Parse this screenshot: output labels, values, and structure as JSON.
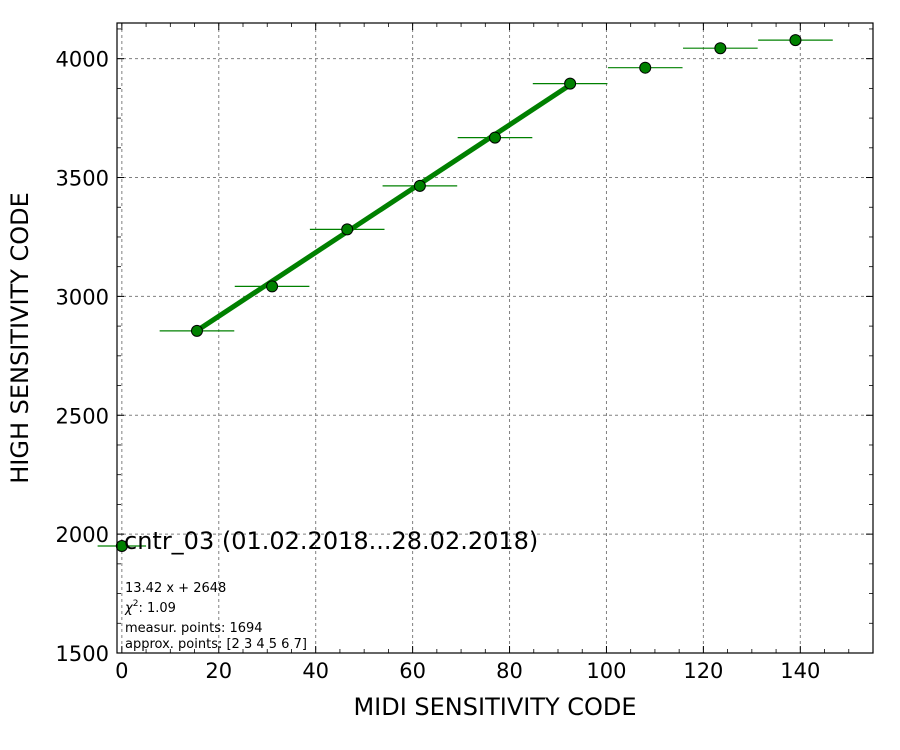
{
  "chart_data": {
    "type": "scatter",
    "xlabel": "MIDI SENSITIVITY CODE",
    "ylabel": "HIGH SENSITIVITY CODE",
    "xlim": [
      -1,
      155
    ],
    "ylim": [
      1500,
      4150
    ],
    "x_ticks": [
      0,
      20,
      40,
      60,
      80,
      100,
      120,
      140
    ],
    "y_ticks": [
      1500,
      2000,
      2500,
      3000,
      3500,
      4000
    ],
    "grid": true,
    "colors": {
      "points": "#008000",
      "fit_line": "#008000",
      "grid": "#808080"
    },
    "series": [
      {
        "points": [
          {
            "x": 0,
            "y": 1950,
            "xerr": 5
          },
          {
            "x": 15.5,
            "y": 2855,
            "xerr": 7.7,
            "yerr": 12
          },
          {
            "x": 31,
            "y": 3042,
            "xerr": 7.7,
            "yerr": 12
          },
          {
            "x": 46.5,
            "y": 3282,
            "xerr": 7.7,
            "yerr": 12
          },
          {
            "x": 61.5,
            "y": 3465,
            "xerr": 7.7,
            "yerr": 25
          },
          {
            "x": 77,
            "y": 3668,
            "xerr": 7.7,
            "yerr": 25
          },
          {
            "x": 92.5,
            "y": 3895,
            "xerr": 7.7,
            "yerr": 20
          },
          {
            "x": 108,
            "y": 3962,
            "xerr": 7.7
          },
          {
            "x": 123.5,
            "y": 4044,
            "xerr": 7.7
          },
          {
            "x": 139,
            "y": 4078,
            "xerr": 7.7
          }
        ]
      }
    ],
    "fit_line": {
      "slope": 13.42,
      "intercept": 2648,
      "x_range": [
        15.5,
        92.5
      ]
    },
    "annotations": {
      "title": "cntr_03 (01.02.2018...28.02.2018)",
      "equation": "13.42 x + 2648",
      "chi2_label": "χ",
      "chi2_exp": "2",
      "chi2_value": ": 1.09",
      "measur_points": "measur. points: 1694",
      "approx_points": "approx. points: [2 3 4 5 6 7]"
    }
  }
}
